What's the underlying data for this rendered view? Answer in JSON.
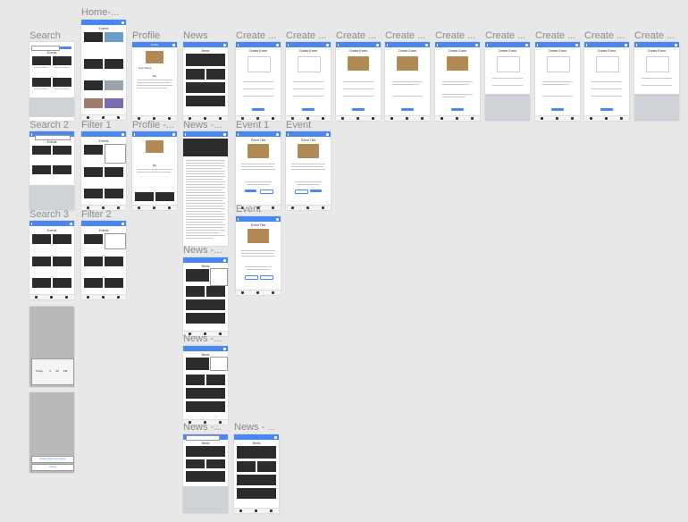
{
  "labels": {
    "home": "Home-...",
    "search": "Search",
    "search2": "Search 2",
    "search3": "Search 3",
    "filter1": "Filter 1",
    "filter2": "Filter 2",
    "profile": "Profile",
    "profile2": "Profile -...",
    "news": "News",
    "news2": "News -...",
    "news3": "News -...",
    "news4": "News -...",
    "news5": "News -...",
    "news6": "News - ...",
    "create1": "Create ...",
    "create2": "Create ...",
    "create3": "Create ...",
    "create4": "Create ...",
    "create5": "Create ...",
    "create6": "Create ...",
    "create7": "Create ...",
    "create8": "Create ...",
    "create9": "Create ...",
    "event1": "Event 1",
    "event2": "Event",
    "event3": "Event"
  },
  "screens": {
    "events_title": "Events",
    "news_title": "News",
    "profile_title": "Profile",
    "create_event_title": "Create Event",
    "event_title": "Event Title",
    "username": "Your Name",
    "bio": "Bio",
    "search_btn": "Search",
    "picker_today": "Today",
    "picker_col2": "3",
    "picker_col3": "00",
    "picker_ampm": "PM",
    "delete_btn": "Choose Photo from Library",
    "cancel_btn": "Cancel",
    "news_headline": "Tiny Tim debuts 'Dinner Date' single on the strangest reason"
  },
  "colors": {
    "accent": "#4a86f0",
    "canvas": "#e8e8e8"
  }
}
